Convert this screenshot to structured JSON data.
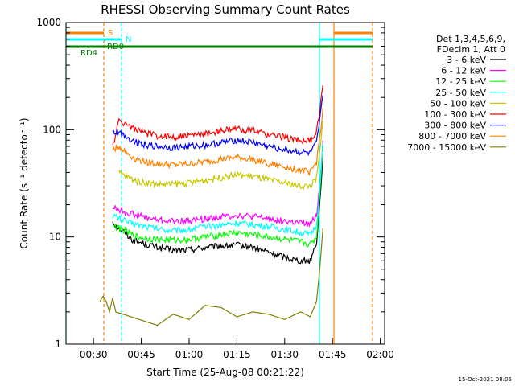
{
  "chart_data": {
    "type": "line",
    "title": "RHESSI Observing Summary Count Rates",
    "xlabel": "Start Time (25-Aug-08 00:21:22)",
    "ylabel": "Count Rate (s⁻¹ detector⁻¹)",
    "yscale": "log",
    "ylim": [
      1,
      1000
    ],
    "xlim": [
      "00:21:22",
      "02:01:22"
    ],
    "x_tick_labels": [
      "00:30",
      "00:45",
      "01:00",
      "01:15",
      "01:30",
      "01:45",
      "02:00"
    ],
    "y_tick_labels": [
      "1",
      "10",
      "100",
      "1000"
    ],
    "grid": false,
    "timestamp": "15-Oct-2021 08:05",
    "legend": {
      "placement": "right",
      "header": [
        "Det 1,3,4,5,6,9,",
        "FDecim 1, Att 0"
      ]
    },
    "series": [
      {
        "name": "3 - 6 keV",
        "color": "#000000",
        "points": [
          [
            "00:36",
            14
          ],
          [
            "00:38",
            12
          ],
          [
            "00:40",
            11
          ],
          [
            "00:42",
            9.5
          ],
          [
            "00:44",
            9
          ],
          [
            "00:47",
            8.5
          ],
          [
            "00:50",
            8
          ],
          [
            "00:55",
            7.5
          ],
          [
            "01:00",
            7.6
          ],
          [
            "01:05",
            8
          ],
          [
            "01:10",
            8.2
          ],
          [
            "01:15",
            8.4
          ],
          [
            "01:20",
            8
          ],
          [
            "01:25",
            7.2
          ],
          [
            "01:30",
            6.5
          ],
          [
            "01:35",
            6
          ],
          [
            "01:38",
            6
          ],
          [
            "01:40",
            9
          ],
          [
            "01:41",
            20
          ],
          [
            "01:42",
            60
          ]
        ]
      },
      {
        "name": "6 - 12 keV",
        "color": "#ff00ff",
        "points": [
          [
            "00:36",
            19
          ],
          [
            "00:38",
            18
          ],
          [
            "00:40",
            17
          ],
          [
            "00:42",
            16.5
          ],
          [
            "00:44",
            16
          ],
          [
            "00:47",
            15
          ],
          [
            "00:50",
            14.5
          ],
          [
            "00:55",
            14
          ],
          [
            "01:00",
            14.2
          ],
          [
            "01:05",
            14.8
          ],
          [
            "01:10",
            15.5
          ],
          [
            "01:15",
            16
          ],
          [
            "01:20",
            15.5
          ],
          [
            "01:25",
            14.8
          ],
          [
            "01:30",
            14
          ],
          [
            "01:35",
            13.5
          ],
          [
            "01:38",
            13
          ],
          [
            "01:40",
            16
          ],
          [
            "01:41",
            30
          ],
          [
            "01:42",
            80
          ]
        ]
      },
      {
        "name": "12 - 25 keV",
        "color": "#00ff00",
        "points": [
          [
            "00:36",
            13
          ],
          [
            "00:38",
            12
          ],
          [
            "00:40",
            11.5
          ],
          [
            "00:42",
            10.5
          ],
          [
            "00:44",
            10
          ],
          [
            "00:47",
            9.7
          ],
          [
            "00:50",
            9.5
          ],
          [
            "00:55",
            9.3
          ],
          [
            "01:00",
            9.5
          ],
          [
            "01:05",
            10
          ],
          [
            "01:10",
            10.5
          ],
          [
            "01:15",
            11
          ],
          [
            "01:20",
            10.5
          ],
          [
            "01:25",
            10
          ],
          [
            "01:30",
            9.5
          ],
          [
            "01:35",
            9
          ],
          [
            "01:38",
            8.5
          ],
          [
            "01:40",
            10
          ],
          [
            "01:41",
            25
          ],
          [
            "01:42",
            70
          ]
        ]
      },
      {
        "name": "25 - 50 keV",
        "color": "#00ffff",
        "points": [
          [
            "00:36",
            16
          ],
          [
            "00:38",
            15
          ],
          [
            "00:40",
            14
          ],
          [
            "00:42",
            13.5
          ],
          [
            "00:44",
            13
          ],
          [
            "00:47",
            12.5
          ],
          [
            "00:50",
            12
          ],
          [
            "00:55",
            11.5
          ],
          [
            "01:00",
            11.8
          ],
          [
            "01:05",
            12.5
          ],
          [
            "01:10",
            13
          ],
          [
            "01:15",
            13.5
          ],
          [
            "01:20",
            13
          ],
          [
            "01:25",
            12.5
          ],
          [
            "01:30",
            11.8
          ],
          [
            "01:35",
            11
          ],
          [
            "01:38",
            10.5
          ],
          [
            "01:40",
            13
          ],
          [
            "01:41",
            28
          ],
          [
            "01:42",
            75
          ]
        ]
      },
      {
        "name": "50 - 100 keV",
        "color": "#c8c800",
        "points": [
          [
            "00:38",
            40
          ],
          [
            "00:40",
            37
          ],
          [
            "00:42",
            35
          ],
          [
            "00:44",
            33
          ],
          [
            "00:47",
            32
          ],
          [
            "00:50",
            31
          ],
          [
            "00:55",
            31
          ],
          [
            "01:00",
            32
          ],
          [
            "01:05",
            34
          ],
          [
            "01:10",
            36
          ],
          [
            "01:15",
            38
          ],
          [
            "01:20",
            37
          ],
          [
            "01:25",
            34
          ],
          [
            "01:30",
            32
          ],
          [
            "01:35",
            30
          ],
          [
            "01:38",
            30
          ],
          [
            "01:40",
            35
          ],
          [
            "01:41",
            60
          ],
          [
            "01:42",
            120
          ]
        ]
      },
      {
        "name": "100 - 300 keV",
        "color": "#ff0000",
        "points": [
          [
            "00:36",
            70
          ],
          [
            "00:38",
            120
          ],
          [
            "00:40",
            115
          ],
          [
            "00:42",
            105
          ],
          [
            "00:44",
            98
          ],
          [
            "00:47",
            92
          ],
          [
            "00:50",
            88
          ],
          [
            "00:55",
            86
          ],
          [
            "01:00",
            88
          ],
          [
            "01:05",
            92
          ],
          [
            "01:10",
            98
          ],
          [
            "01:15",
            102
          ],
          [
            "01:20",
            98
          ],
          [
            "01:25",
            90
          ],
          [
            "01:30",
            85
          ],
          [
            "01:35",
            80
          ],
          [
            "01:38",
            78
          ],
          [
            "01:40",
            95
          ],
          [
            "01:41",
            150
          ],
          [
            "01:42",
            260
          ]
        ]
      },
      {
        "name": "300 - 800 keV",
        "color": "#0000ff",
        "points": [
          [
            "00:36",
            95
          ],
          [
            "00:38",
            95
          ],
          [
            "00:40",
            88
          ],
          [
            "00:42",
            80
          ],
          [
            "00:44",
            76
          ],
          [
            "00:47",
            72
          ],
          [
            "00:50",
            70
          ],
          [
            "00:55",
            68
          ],
          [
            "01:00",
            70
          ],
          [
            "01:05",
            72
          ],
          [
            "01:10",
            76
          ],
          [
            "01:15",
            80
          ],
          [
            "01:20",
            76
          ],
          [
            "01:25",
            70
          ],
          [
            "01:30",
            65
          ],
          [
            "01:35",
            62
          ],
          [
            "01:38",
            60
          ],
          [
            "01:40",
            75
          ],
          [
            "01:41",
            120
          ],
          [
            "01:42",
            210
          ]
        ]
      },
      {
        "name": "800 - 7000 keV",
        "color": "#ff8000",
        "points": [
          [
            "00:36",
            65
          ],
          [
            "00:38",
            70
          ],
          [
            "00:40",
            62
          ],
          [
            "00:42",
            56
          ],
          [
            "00:44",
            52
          ],
          [
            "00:47",
            50
          ],
          [
            "00:50",
            48
          ],
          [
            "00:55",
            47
          ],
          [
            "01:00",
            48
          ],
          [
            "01:05",
            50
          ],
          [
            "01:10",
            53
          ],
          [
            "01:15",
            55
          ],
          [
            "01:20",
            53
          ],
          [
            "01:25",
            48
          ],
          [
            "01:30",
            45
          ],
          [
            "01:35",
            42
          ],
          [
            "01:38",
            40
          ],
          [
            "01:40",
            50
          ],
          [
            "01:41",
            85
          ],
          [
            "01:42",
            160
          ]
        ]
      },
      {
        "name": "7000 - 15000 keV",
        "color": "#808000",
        "points": [
          [
            "00:32",
            2.5
          ],
          [
            "00:33",
            2.8
          ],
          [
            "00:34",
            2.5
          ],
          [
            "00:35",
            2
          ],
          [
            "00:36",
            2.7
          ],
          [
            "00:37",
            2
          ],
          [
            "00:50",
            1.5
          ],
          [
            "00:55",
            1.9
          ],
          [
            "01:00",
            1.7
          ],
          [
            "01:05",
            2.3
          ],
          [
            "01:10",
            2.2
          ],
          [
            "01:15",
            1.8
          ],
          [
            "01:20",
            2
          ],
          [
            "01:25",
            1.9
          ],
          [
            "01:30",
            1.7
          ],
          [
            "01:35",
            2
          ],
          [
            "01:38",
            1.8
          ],
          [
            "01:40",
            2.5
          ],
          [
            "01:41",
            5
          ],
          [
            "01:42",
            12
          ]
        ]
      }
    ],
    "annotations": [
      {
        "label": "S",
        "color": "#ff8000"
      },
      {
        "label": "N",
        "color": "#00ffff"
      },
      {
        "label": "RD0",
        "color": "#008000"
      },
      {
        "label": "RD4",
        "color": "#008000"
      }
    ]
  }
}
